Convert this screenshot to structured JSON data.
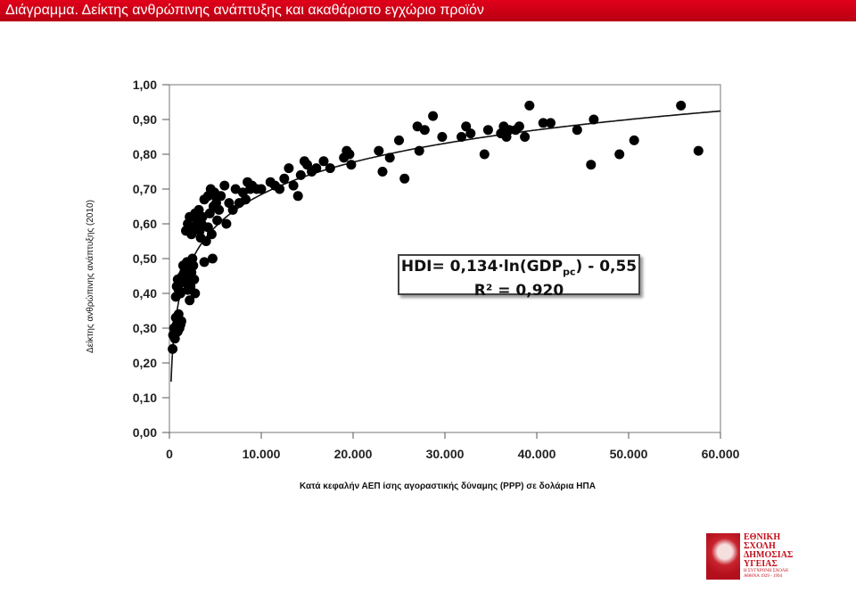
{
  "slide_title": "Διάγραμμα. Δείκτης ανθρώπινης ανάπτυξης και ακαθάριστο εγχώριο προϊόν",
  "equation": {
    "line1": "HDI= 0,134·ln(GDP",
    "line1_sub": "pc",
    "line1_end": ") - 0,55",
    "line2": "R² = 0,920"
  },
  "logo": {
    "line1": "ΕΘΝΙΚΗ",
    "line2": "ΣΧΟΛΗ",
    "line3": "ΔΗΜΟΣΙΑΣ",
    "line4": "ΥΓΕΙΑΣ",
    "sub1": "Η ΣΥΓΧΡΟΝΗ ΣΧΟΛΗ",
    "sub2": "ΑΘΗΝΑ 1929 - 1994"
  },
  "chart_data": {
    "type": "scatter",
    "xlabel": "Κατά κεφαλήν ΑΕΠ ίσης αγοραστικής δύναμης (PPP) σε δολάρια ΗΠΑ",
    "ylabel": "Δείκτης ανθρώπινης ανάπτυξης (2010)",
    "xlim": [
      0,
      60000
    ],
    "ylim": [
      0,
      1
    ],
    "x_ticks": [
      0,
      10000,
      20000,
      30000,
      40000,
      50000,
      60000
    ],
    "x_tick_labels": [
      "0",
      "10.000",
      "20.000",
      "30.000",
      "40.000",
      "50.000",
      "60.000"
    ],
    "y_ticks": [
      0,
      0.1,
      0.2,
      0.3,
      0.4,
      0.5,
      0.6,
      0.7,
      0.8,
      0.9,
      1.0
    ],
    "y_tick_labels": [
      "0,00",
      "0,10",
      "0,20",
      "0,30",
      "0,40",
      "0,50",
      "0,60",
      "0,70",
      "0,80",
      "0,90",
      "1,00"
    ],
    "grid": "none",
    "trendline": {
      "form": "log",
      "a": 0.134,
      "b": -0.55
    },
    "points": [
      [
        350,
        0.24
      ],
      [
        400,
        0.28
      ],
      [
        500,
        0.3
      ],
      [
        600,
        0.27
      ],
      [
        700,
        0.33
      ],
      [
        800,
        0.31
      ],
      [
        900,
        0.29
      ],
      [
        1000,
        0.34
      ],
      [
        1100,
        0.3
      ],
      [
        1200,
        0.31
      ],
      [
        1300,
        0.32
      ],
      [
        700,
        0.39
      ],
      [
        800,
        0.42
      ],
      [
        900,
        0.44
      ],
      [
        1000,
        0.41
      ],
      [
        1100,
        0.43
      ],
      [
        1200,
        0.4
      ],
      [
        1300,
        0.44
      ],
      [
        1400,
        0.45
      ],
      [
        1500,
        0.48
      ],
      [
        1600,
        0.46
      ],
      [
        1700,
        0.47
      ],
      [
        1800,
        0.43
      ],
      [
        1900,
        0.49
      ],
      [
        2000,
        0.41
      ],
      [
        2100,
        0.44
      ],
      [
        2200,
        0.38
      ],
      [
        2300,
        0.42
      ],
      [
        2400,
        0.46
      ],
      [
        2500,
        0.5
      ],
      [
        2600,
        0.48
      ],
      [
        2700,
        0.44
      ],
      [
        2800,
        0.4
      ],
      [
        1800,
        0.58
      ],
      [
        2000,
        0.6
      ],
      [
        2200,
        0.62
      ],
      [
        2400,
        0.57
      ],
      [
        2600,
        0.59
      ],
      [
        2800,
        0.63
      ],
      [
        3000,
        0.61
      ],
      [
        3200,
        0.64
      ],
      [
        3300,
        0.58
      ],
      [
        3400,
        0.56
      ],
      [
        3500,
        0.6
      ],
      [
        3600,
        0.62
      ],
      [
        3800,
        0.49
      ],
      [
        4000,
        0.55
      ],
      [
        4200,
        0.59
      ],
      [
        4400,
        0.63
      ],
      [
        4600,
        0.57
      ],
      [
        4700,
        0.5
      ],
      [
        4800,
        0.65
      ],
      [
        5000,
        0.68
      ],
      [
        5200,
        0.61
      ],
      [
        5400,
        0.64
      ],
      [
        3800,
        0.67
      ],
      [
        4200,
        0.68
      ],
      [
        4500,
        0.7
      ],
      [
        4900,
        0.69
      ],
      [
        5100,
        0.66
      ],
      [
        5600,
        0.68
      ],
      [
        6000,
        0.71
      ],
      [
        6200,
        0.6
      ],
      [
        6500,
        0.66
      ],
      [
        6900,
        0.64
      ],
      [
        7200,
        0.7
      ],
      [
        7600,
        0.66
      ],
      [
        8000,
        0.69
      ],
      [
        8300,
        0.67
      ],
      [
        8500,
        0.72
      ],
      [
        8800,
        0.7
      ],
      [
        9000,
        0.71
      ],
      [
        9500,
        0.7
      ],
      [
        10000,
        0.7
      ],
      [
        11000,
        0.72
      ],
      [
        11500,
        0.71
      ],
      [
        12000,
        0.7
      ],
      [
        12500,
        0.73
      ],
      [
        13000,
        0.76
      ],
      [
        13500,
        0.71
      ],
      [
        14000,
        0.68
      ],
      [
        14300,
        0.74
      ],
      [
        14700,
        0.78
      ],
      [
        15000,
        0.77
      ],
      [
        15500,
        0.75
      ],
      [
        16000,
        0.76
      ],
      [
        16800,
        0.78
      ],
      [
        17500,
        0.76
      ],
      [
        19000,
        0.79
      ],
      [
        19300,
        0.81
      ],
      [
        19600,
        0.8
      ],
      [
        19800,
        0.77
      ],
      [
        22800,
        0.81
      ],
      [
        23200,
        0.75
      ],
      [
        24000,
        0.79
      ],
      [
        25000,
        0.84
      ],
      [
        25600,
        0.73
      ],
      [
        27000,
        0.88
      ],
      [
        27200,
        0.81
      ],
      [
        27800,
        0.87
      ],
      [
        28700,
        0.91
      ],
      [
        29700,
        0.85
      ],
      [
        31800,
        0.85
      ],
      [
        32300,
        0.88
      ],
      [
        32800,
        0.86
      ],
      [
        34300,
        0.8
      ],
      [
        34700,
        0.87
      ],
      [
        36100,
        0.86
      ],
      [
        36400,
        0.88
      ],
      [
        36700,
        0.85
      ],
      [
        37000,
        0.87
      ],
      [
        37700,
        0.87
      ],
      [
        38100,
        0.88
      ],
      [
        38700,
        0.85
      ],
      [
        39200,
        0.94
      ],
      [
        40700,
        0.89
      ],
      [
        41500,
        0.89
      ],
      [
        44400,
        0.87
      ],
      [
        45900,
        0.77
      ],
      [
        46200,
        0.9
      ],
      [
        49000,
        0.8
      ],
      [
        50600,
        0.84
      ],
      [
        55700,
        0.94
      ],
      [
        57600,
        0.81
      ]
    ]
  }
}
